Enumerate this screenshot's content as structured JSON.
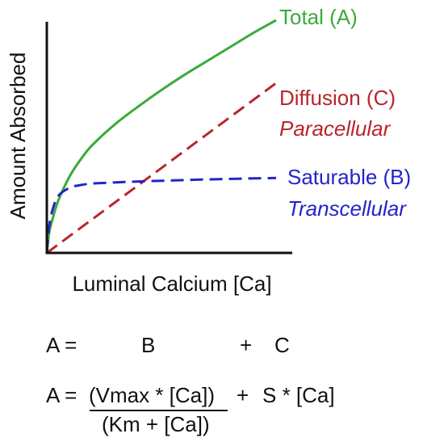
{
  "chart_data": {
    "type": "line",
    "title": "",
    "xlabel": "Luminal Calcium [Ca]",
    "ylabel": "Amount Absorbed",
    "grid": false,
    "xlim": [
      0,
      10
    ],
    "ylim": [
      0,
      10
    ],
    "series": [
      {
        "name": "Total (A)",
        "sublabel": "",
        "color": "#3aab3a",
        "style": "solid",
        "x": [
          0,
          0.1,
          0.25,
          0.5,
          1,
          1.5,
          2,
          3,
          4,
          5,
          6,
          7,
          8,
          9,
          10
        ],
        "y": [
          0,
          0.85,
          1.45,
          2.25,
          3.3,
          4.05,
          4.65,
          5.55,
          6.3,
          7.0,
          7.65,
          8.25,
          8.85,
          9.45,
          10.0
        ]
      },
      {
        "name": "Diffusion (C)",
        "sublabel": "Paracellular",
        "color": "#b8262b",
        "style": "dashed",
        "x": [
          0,
          10
        ],
        "y": [
          0,
          7.3
        ]
      },
      {
        "name": "Saturable (B)",
        "sublabel": "Transcellular",
        "color": "#2424c8",
        "style": "dashed",
        "x": [
          0,
          0.1,
          0.25,
          0.5,
          1,
          1.5,
          2,
          3,
          4,
          5,
          6,
          7,
          8,
          9,
          10
        ],
        "y": [
          0,
          1.1,
          1.85,
          2.45,
          2.8,
          2.92,
          2.98,
          3.03,
          3.07,
          3.1,
          3.13,
          3.16,
          3.18,
          3.2,
          3.22
        ]
      }
    ]
  },
  "equations": {
    "line1": {
      "lhs": "A =",
      "term1": "B",
      "plus": "+",
      "term2": "C"
    },
    "line2": {
      "lhs": "A =",
      "numerator": "(Vmax * [Ca])",
      "denominator": "(Km + [Ca])",
      "plus": "+",
      "rhs": "S * [Ca]"
    }
  }
}
